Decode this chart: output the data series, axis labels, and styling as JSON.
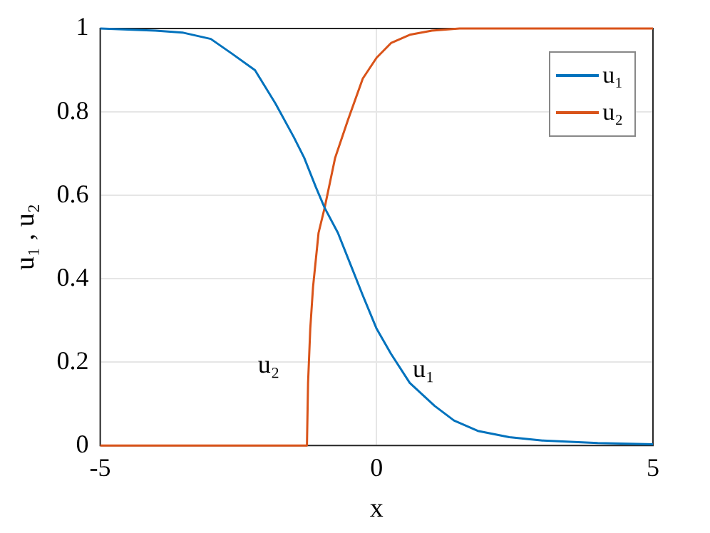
{
  "chart_data": {
    "type": "line",
    "xlabel": "x",
    "ylabel": "u₁ , u₂",
    "xlim": [
      -5,
      5
    ],
    "ylim": [
      0,
      1
    ],
    "xticks": [
      -5,
      0,
      5
    ],
    "yticks": [
      0,
      0.2,
      0.4,
      0.6,
      0.8,
      1
    ],
    "grid": true,
    "legend": "top right",
    "marker": "none",
    "line_style": "solid",
    "series": [
      {
        "name": "u₁",
        "color": "#0072bd",
        "x": [
          -5,
          -4,
          -3.5,
          -3,
          -2.62,
          -2.2,
          -1.83,
          -1.5,
          -1.31,
          -1.1,
          -0.94,
          -0.7,
          -0.52,
          -0.25,
          0,
          0.26,
          0.6,
          1.05,
          1.4,
          1.83,
          2.4,
          3,
          4,
          5
        ],
        "values": [
          1,
          0.995,
          0.99,
          0.975,
          0.94,
          0.9,
          0.82,
          0.74,
          0.69,
          0.62,
          0.57,
          0.51,
          0.45,
          0.36,
          0.28,
          0.22,
          0.15,
          0.095,
          0.06,
          0.035,
          0.02,
          0.012,
          0.006,
          0.003
        ]
      },
      {
        "name": "u₂",
        "color": "#d95319",
        "x": [
          -5,
          -1.26,
          -1.24,
          -1.2,
          -1.15,
          -1.05,
          -0.94,
          -0.75,
          -0.52,
          -0.25,
          0,
          0.26,
          0.6,
          1,
          1.5,
          2,
          5
        ],
        "values": [
          0,
          0,
          0.15,
          0.28,
          0.38,
          0.51,
          0.57,
          0.69,
          0.78,
          0.88,
          0.93,
          0.965,
          0.985,
          0.995,
          1,
          1,
          1
        ]
      }
    ],
    "annotations": [
      "u₂",
      "u₁"
    ]
  }
}
